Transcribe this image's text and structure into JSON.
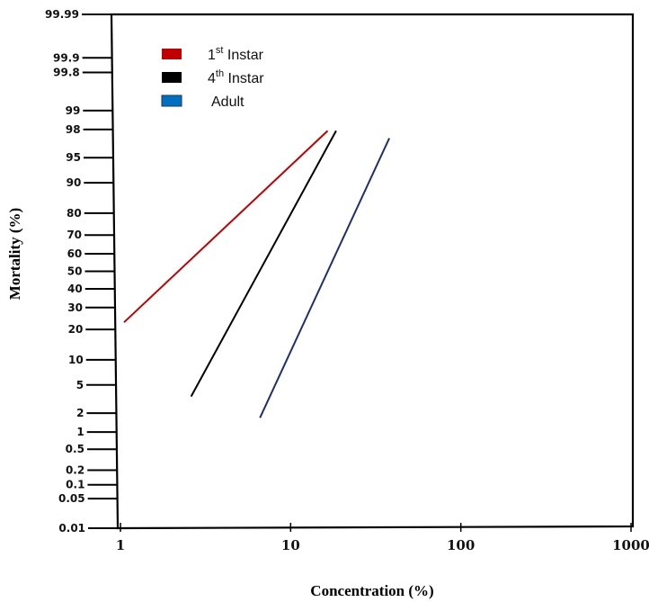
{
  "chart_data": {
    "type": "line",
    "xlabel": "Concentration (%)",
    "ylabel": "Mortality (%)",
    "x_scale": "log",
    "y_scale": "probit",
    "x_ticks": [
      "1",
      "10",
      "100",
      "1000"
    ],
    "y_ticks": [
      "0.01",
      "0.05",
      "0.1",
      "0.2",
      "0.5",
      "1",
      "2",
      "5",
      "10",
      "20",
      "30",
      "40",
      "50",
      "60",
      "70",
      "80",
      "90",
      "95",
      "98",
      "99",
      "99.8",
      "99.9",
      "99.99"
    ],
    "xlim": [
      1,
      1000
    ],
    "ylim": [
      0.01,
      99.99
    ],
    "legend": {
      "position": "top-left",
      "entries": [
        {
          "base": "1",
          "sup": "st",
          "text": " Instar",
          "color": "#c00000"
        },
        {
          "base": "4",
          "sup": "th",
          "text": " Instar",
          "color": "#000000"
        },
        {
          "base": "",
          "sup": "",
          "text": "Adult",
          "color": "#0070c0"
        }
      ]
    },
    "series": [
      {
        "name": "1st Instar",
        "color": "#c00000",
        "x": [
          1.05,
          16.5
        ],
        "y": [
          23,
          97.9
        ]
      },
      {
        "name": "4th Instar",
        "color": "#000000",
        "x": [
          2.6,
          18.5
        ],
        "y": [
          3.5,
          97.9
        ]
      },
      {
        "name": "Adult",
        "color": "#1f2f6e",
        "x": [
          6.6,
          38
        ],
        "y": [
          1.7,
          97.3
        ]
      }
    ]
  }
}
